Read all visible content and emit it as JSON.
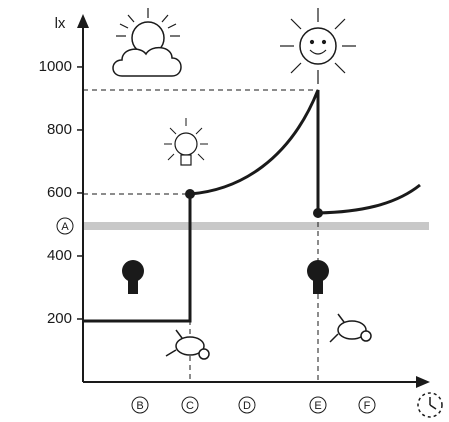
{
  "chart_data": {
    "type": "line",
    "y_label": "lx",
    "ylim": [
      0,
      1130
    ],
    "yticks": [
      200,
      400,
      600,
      800,
      1000
    ],
    "color": "#1a1a1a",
    "annotations": [
      "A",
      "B",
      "C",
      "D",
      "E",
      "F"
    ]
  }
}
